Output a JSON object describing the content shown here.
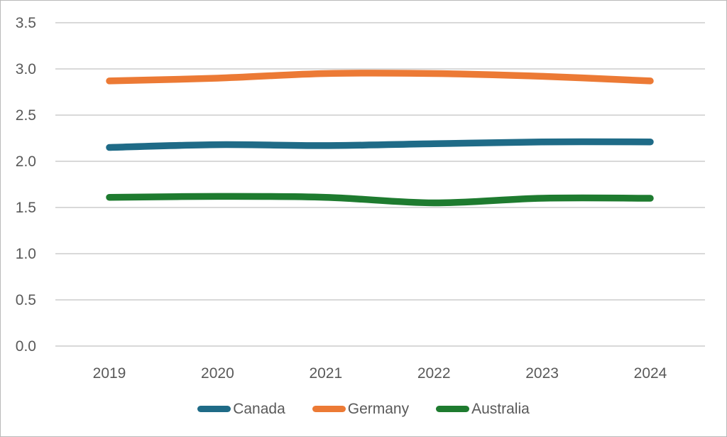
{
  "chart_data": {
    "type": "line",
    "title": "",
    "xlabel": "",
    "ylabel": "",
    "categories": [
      "2019",
      "2020",
      "2021",
      "2022",
      "2023",
      "2024"
    ],
    "series": [
      {
        "name": "Canada",
        "color": "#1F6B87",
        "values": [
          2.15,
          2.18,
          2.17,
          2.19,
          2.21,
          2.21
        ]
      },
      {
        "name": "Germany",
        "color": "#EC7A35",
        "values": [
          2.87,
          2.9,
          2.95,
          2.95,
          2.92,
          2.87
        ]
      },
      {
        "name": "Australia",
        "color": "#1E7B2F",
        "values": [
          1.61,
          1.62,
          1.61,
          1.55,
          1.6,
          1.6
        ]
      }
    ],
    "ylim": [
      0.0,
      3.5
    ],
    "ytick_labels": [
      "3.5",
      "3.0",
      "2.5",
      "2.0",
      "1.5",
      "1.0",
      "0.5",
      "0.0"
    ],
    "yticks": [
      3.5,
      3.0,
      2.5,
      2.0,
      1.5,
      1.0,
      0.5,
      0.0
    ],
    "grid": "horizontal-only",
    "legend_position": "bottom-center",
    "line_style": "smooth, thick, rounded caps",
    "colors": {
      "tick_text": "#595959",
      "gridline": "#D9D9D9",
      "background": "#FFFFFF",
      "frame_border": "#B9B9B9"
    }
  }
}
